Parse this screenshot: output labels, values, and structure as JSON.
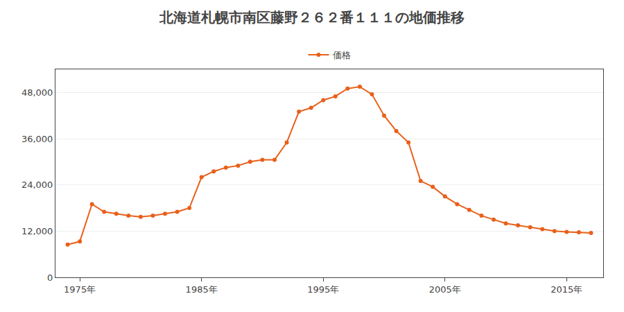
{
  "chart_data": {
    "type": "line",
    "title": "北海道札幌市南区藤野２６２番１１１の地価推移",
    "x": [
      1974,
      1975,
      1976,
      1977,
      1978,
      1979,
      1980,
      1981,
      1982,
      1983,
      1984,
      1985,
      1986,
      1987,
      1988,
      1989,
      1990,
      1991,
      1992,
      1993,
      1994,
      1995,
      1996,
      1997,
      1998,
      1999,
      2000,
      2001,
      2002,
      2003,
      2004,
      2005,
      2006,
      2007,
      2008,
      2009,
      2010,
      2011,
      2012,
      2013,
      2014,
      2015,
      2016,
      2017
    ],
    "series": [
      {
        "name": "価格",
        "color": "#e8601a",
        "marker": "circle",
        "line_style": "solid",
        "values": [
          8500,
          9300,
          19000,
          17000,
          16500,
          16000,
          15700,
          16000,
          16500,
          17000,
          18000,
          26000,
          27500,
          28500,
          29000,
          30000,
          30500,
          30500,
          35000,
          43000,
          44000,
          46000,
          47000,
          49000,
          49500,
          47500,
          42000,
          38000,
          35000,
          25000,
          23500,
          21000,
          19000,
          17500,
          16000,
          15000,
          14000,
          13500,
          13000,
          12500,
          12000,
          11800,
          11700,
          11500
        ]
      }
    ],
    "xlim": [
      1973,
      2018
    ],
    "xticks": [
      {
        "value": 1975,
        "label": "1975年"
      },
      {
        "value": 1985,
        "label": "1985年"
      },
      {
        "value": 1995,
        "label": "1995年"
      },
      {
        "value": 2005,
        "label": "2005年"
      },
      {
        "value": 2015,
        "label": "2015年"
      }
    ],
    "ylim": [
      0,
      54000
    ],
    "yticks": [
      0,
      {
        "value": 12000,
        "label": "12,000"
      },
      {
        "value": 24000,
        "label": "24,000"
      },
      {
        "value": 36000,
        "label": "36,000"
      },
      {
        "value": 48000,
        "label": "48,000"
      }
    ],
    "grid": "y",
    "legend": "top"
  }
}
